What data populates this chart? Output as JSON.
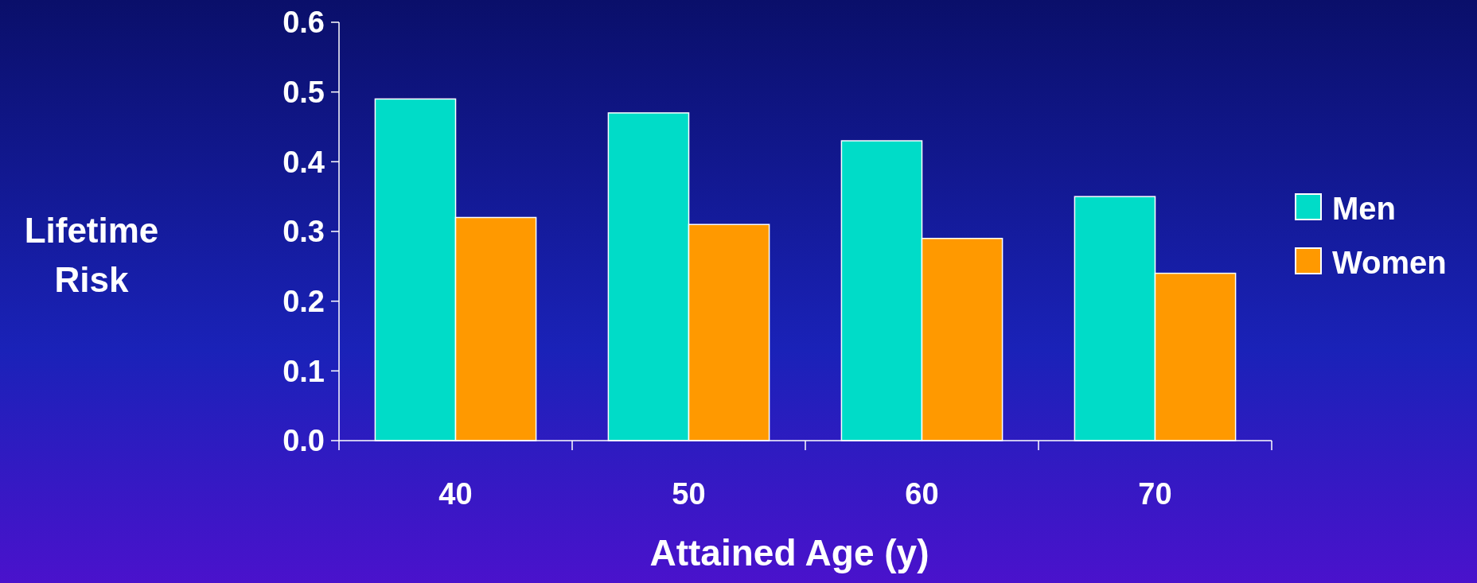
{
  "chart_data": {
    "type": "bar",
    "xlabel": "Attained Age (y)",
    "ylabel": "Lifetime Risk",
    "categories": [
      "40",
      "50",
      "60",
      "70"
    ],
    "series": [
      {
        "name": "Men",
        "color": "#00dcc8",
        "values": [
          0.49,
          0.47,
          0.43,
          0.35
        ]
      },
      {
        "name": "Women",
        "color": "#ff9900",
        "values": [
          0.32,
          0.31,
          0.29,
          0.24
        ]
      }
    ],
    "ylim": [
      0,
      0.6
    ],
    "yticks": [
      {
        "value": 0,
        "label": "0.0"
      },
      0.1,
      0.2,
      0.3,
      0.4,
      0.5,
      0.6
    ],
    "grid": false,
    "legend": "right"
  }
}
